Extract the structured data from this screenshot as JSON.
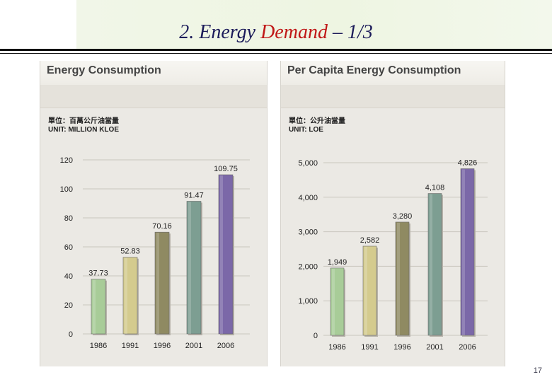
{
  "slide": {
    "title_number": "2.",
    "title_word1": "Energy",
    "title_word2": "Demand",
    "title_suffix": "– 1/3",
    "page_number": "17"
  },
  "chart_data": [
    {
      "type": "bar",
      "title": "Energy Consumption",
      "unit_zh": "單位：百萬公斤油當量",
      "unit_en": "UNIT: MILLION KLOE",
      "categories": [
        "1986",
        "1991",
        "1996",
        "2001",
        "2006"
      ],
      "values": [
        37.73,
        52.83,
        70.16,
        91.47,
        109.75
      ],
      "value_labels": [
        "37.73",
        "52.83",
        "70.16",
        "91.47",
        "109.75"
      ],
      "yticks": [
        "0",
        "20",
        "40",
        "60",
        "80",
        "100",
        "120"
      ],
      "ylim": [
        0,
        120
      ],
      "bar_colors": [
        "#a8cc98",
        "#d4cb8e",
        "#8f8a62",
        "#7d9e92",
        "#7b68a8"
      ],
      "grid": true
    },
    {
      "type": "bar",
      "title": "Per Capita Energy Consumption",
      "unit_zh": "單位：公升油當量",
      "unit_en": "UNIT: LOE",
      "categories": [
        "1986",
        "1991",
        "1996",
        "2001",
        "2006"
      ],
      "values": [
        1949,
        2582,
        3280,
        4108,
        4826
      ],
      "value_labels": [
        "1,949",
        "2,582",
        "3,280",
        "4,108",
        "4,826"
      ],
      "yticks": [
        "0",
        "1,000",
        "2,000",
        "3,000",
        "4,000",
        "5,000"
      ],
      "ylim": [
        0,
        5000
      ],
      "bar_colors": [
        "#a8cc98",
        "#d4cb8e",
        "#8f8a62",
        "#7d9e92",
        "#7b68a8"
      ],
      "grid": true
    }
  ]
}
